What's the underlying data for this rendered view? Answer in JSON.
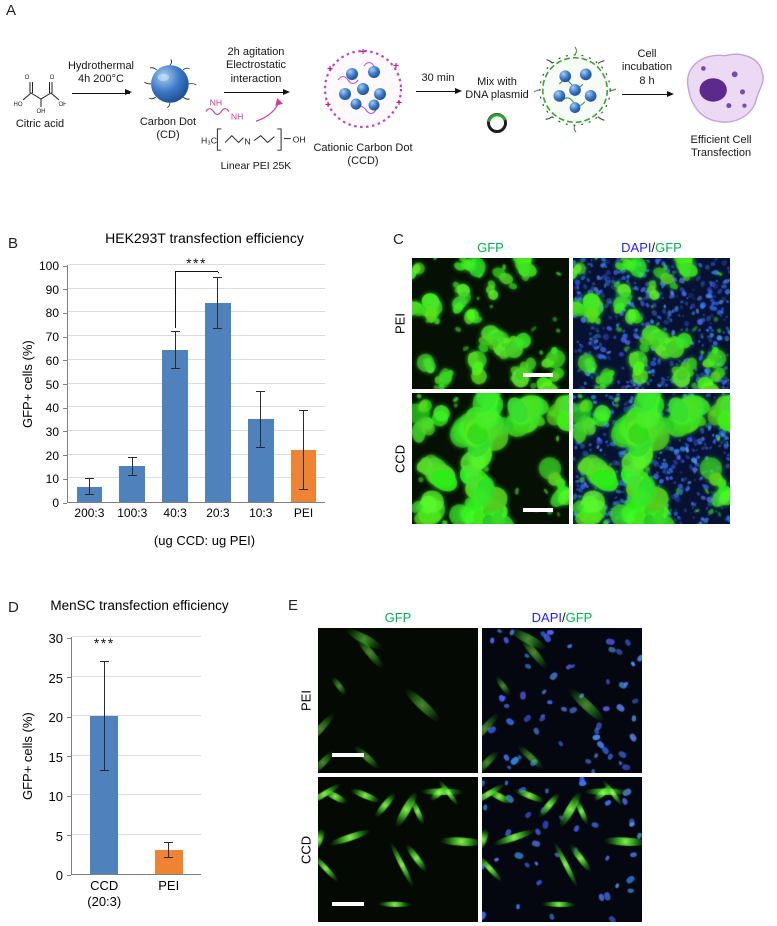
{
  "colors": {
    "bar_blue": "#4f81bd",
    "bar_orange": "#ee8433",
    "gfp_green": "#00b050",
    "dapi_blue": "#2222ff",
    "pei_pink": "#cf3d9b",
    "carbon_dot_blue": "#3b78c6",
    "cell_purple": "#5b2a8c"
  },
  "icons": {
    "reaction_arrow": "black-right-arrow",
    "carbon_dot_icon": "blue-sphere-with-surface-groups",
    "ccd_icon": "dotted-purple-ring-with-blue-spheres-and-plus-charges",
    "plasmid_icon": "two-color-ring",
    "ccd_dna_complex_icon": "green-dark-strand-ring-with-blue-spheres",
    "cell_icon": "purple-cell-blob-with-nucleus",
    "scale_bar": "white-bar"
  },
  "panels": {
    "a": {
      "label": "A",
      "citric_acid_label": "Citric acid",
      "molecule_labels": [
        "O",
        "HO",
        "OH",
        "O",
        "OH"
      ],
      "hydrothermal_line1": "Hydrothermal",
      "hydrothermal_line2": "4h 200°C",
      "carbon_dot_line1": "Carbon Dot",
      "carbon_dot_line2": "(CD)",
      "agitation_line1": "2h agitation",
      "agitation_line2": "Electrostatic",
      "agitation_line3": "interaction",
      "nh_label1": "NH",
      "nh_label2": "NH",
      "pei_h3c": "H₃C",
      "pei_n": "N",
      "pei_oh": "OH",
      "pei_label": "Linear PEI 25K",
      "charge_symbol": "+",
      "ccd_line1": "Cationic Carbon Dot",
      "ccd_line2": "(CCD)",
      "mix_time": "30 min",
      "mix_line1": "Mix with",
      "mix_line2": "DNA plasmid",
      "incubation_line1": "Cell",
      "incubation_line2": "incubation",
      "incubation_line3": "8 h",
      "result_line1": "Efficient Cell",
      "result_line2": "Transfection"
    },
    "b": {
      "label": "B"
    },
    "c": {
      "label": "C",
      "header_gfp": "GFP",
      "header_dapi": "DAPI",
      "header_slash": "/",
      "header_merge_gfp": "GFP",
      "row1": "PEI",
      "row2": "CCD"
    },
    "d": {
      "label": "D"
    },
    "e": {
      "label": "E",
      "header_gfp": "GFP",
      "header_dapi": "DAPI",
      "header_slash": "/",
      "header_merge_gfp": "GFP",
      "row1": "PEI",
      "row2": "CCD"
    }
  },
  "chart_data": [
    {
      "id": "chart-b",
      "type": "bar",
      "title": "HEK293T transfection efficiency",
      "categories": [
        "200:3",
        "100:3",
        "40:3",
        "20:3",
        "10:3",
        "PEI"
      ],
      "category_lines": [
        [
          "200:3"
        ],
        [
          "100:3"
        ],
        [
          "40:3"
        ],
        [
          "20:3"
        ],
        [
          "10:3"
        ],
        [
          "PEI"
        ]
      ],
      "values": [
        6.5,
        15,
        64,
        84,
        35,
        22
      ],
      "errors": [
        3.5,
        4,
        8,
        11,
        12,
        17
      ],
      "bar_colors": [
        "#4f81bd",
        "#4f81bd",
        "#4f81bd",
        "#4f81bd",
        "#4f81bd",
        "#ee8433"
      ],
      "ylabel": "GFP+ cells (%)",
      "xlabel": "(ug CCD: ug PEI)",
      "ylim": [
        0,
        100
      ],
      "ytick_step": 10,
      "grid": true,
      "legend": "none",
      "significance": {
        "type": "bracket",
        "from": 2,
        "to": 3,
        "y": 97,
        "label": "***"
      }
    },
    {
      "id": "chart-d",
      "type": "bar",
      "title": "MenSC transfection efficiency",
      "categories": [
        "CCD (20:3)",
        "PEI"
      ],
      "category_lines": [
        [
          "CCD",
          "(20:3)"
        ],
        [
          "PEI"
        ]
      ],
      "values": [
        20,
        3
      ],
      "errors": [
        7,
        1
      ],
      "bar_colors": [
        "#4f81bd",
        "#ee8433"
      ],
      "ylabel": "GFP+ cells (%)",
      "xlabel": "",
      "ylim": [
        0,
        30
      ],
      "ytick_step": 5,
      "grid": true,
      "legend": "none",
      "significance": {
        "type": "stars",
        "index": 0,
        "y": 28.2,
        "label": "***"
      }
    }
  ]
}
